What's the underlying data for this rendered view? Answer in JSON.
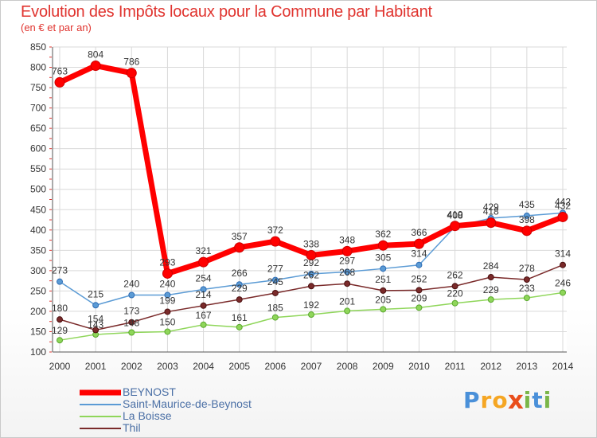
{
  "title": "Evolution des Impôts locaux pour la Commune par Habitant",
  "subtitle": "(en € et par an)",
  "logo": {
    "letters": [
      "P",
      "r",
      "o",
      "x",
      "i",
      "t",
      "i"
    ],
    "colors": [
      "#4a90d9",
      "#f5a623",
      "#f5a623",
      "#e94e1b",
      "#7ab648",
      "#4a90d9",
      "#7ab648"
    ]
  },
  "chart_data": {
    "type": "line",
    "x": [
      "2000",
      "2001",
      "2002",
      "2003",
      "2004",
      "2005",
      "2006",
      "2007",
      "2008",
      "2009",
      "2010",
      "2011",
      "2012",
      "2013",
      "2014"
    ],
    "ylim": [
      100,
      850
    ],
    "yticks": [
      "100",
      "150",
      "200",
      "250",
      "300",
      "350",
      "400",
      "450",
      "500",
      "550",
      "600",
      "650",
      "700",
      "750",
      "800",
      "850"
    ],
    "grid": true,
    "legend_position": "bottom-left",
    "series": [
      {
        "name": "BEYNOST",
        "color": "#ff0000",
        "values": [
          763,
          804,
          786,
          293,
          321,
          357,
          372,
          338,
          348,
          362,
          366,
          410,
          418,
          398,
          432
        ]
      },
      {
        "name": "Saint-Maurice-de-Beynost",
        "color": "#5b9bd5",
        "values": [
          273,
          215,
          240,
          240,
          254,
          266,
          277,
          292,
          297,
          305,
          314,
          408,
          429,
          435,
          442
        ]
      },
      {
        "name": "La Boisse",
        "color": "#8fd65a",
        "values": [
          129,
          143,
          148,
          150,
          167,
          161,
          185,
          192,
          201,
          205,
          209,
          220,
          229,
          233,
          246
        ]
      },
      {
        "name": "Thil",
        "color": "#7a2a2a",
        "values": [
          180,
          154,
          173,
          199,
          214,
          229,
          245,
          262,
          268,
          251,
          252,
          262,
          284,
          278,
          314
        ]
      }
    ]
  }
}
